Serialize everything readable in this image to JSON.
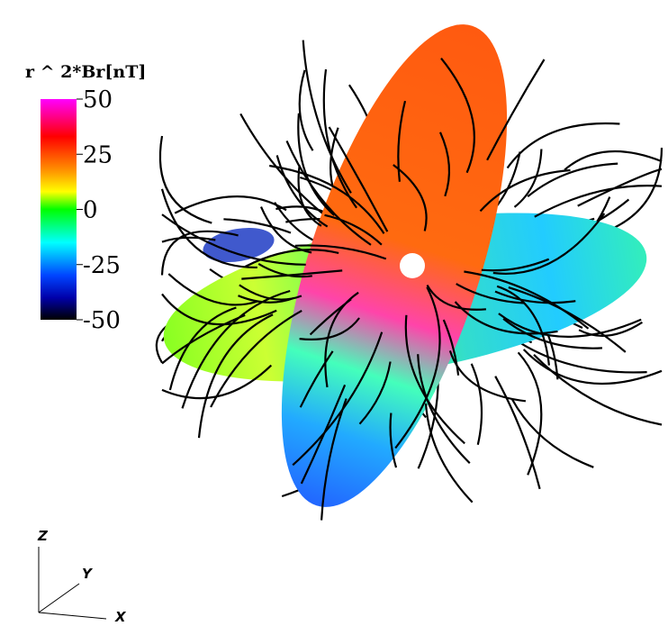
{
  "colorbar": {
    "title": "r ^ 2*Br[nT]",
    "ticks": [
      50,
      25,
      0,
      -25,
      -50
    ],
    "range": [
      -50,
      50
    ]
  },
  "axes": {
    "x": "X",
    "y": "Y",
    "z": "Z"
  }
}
